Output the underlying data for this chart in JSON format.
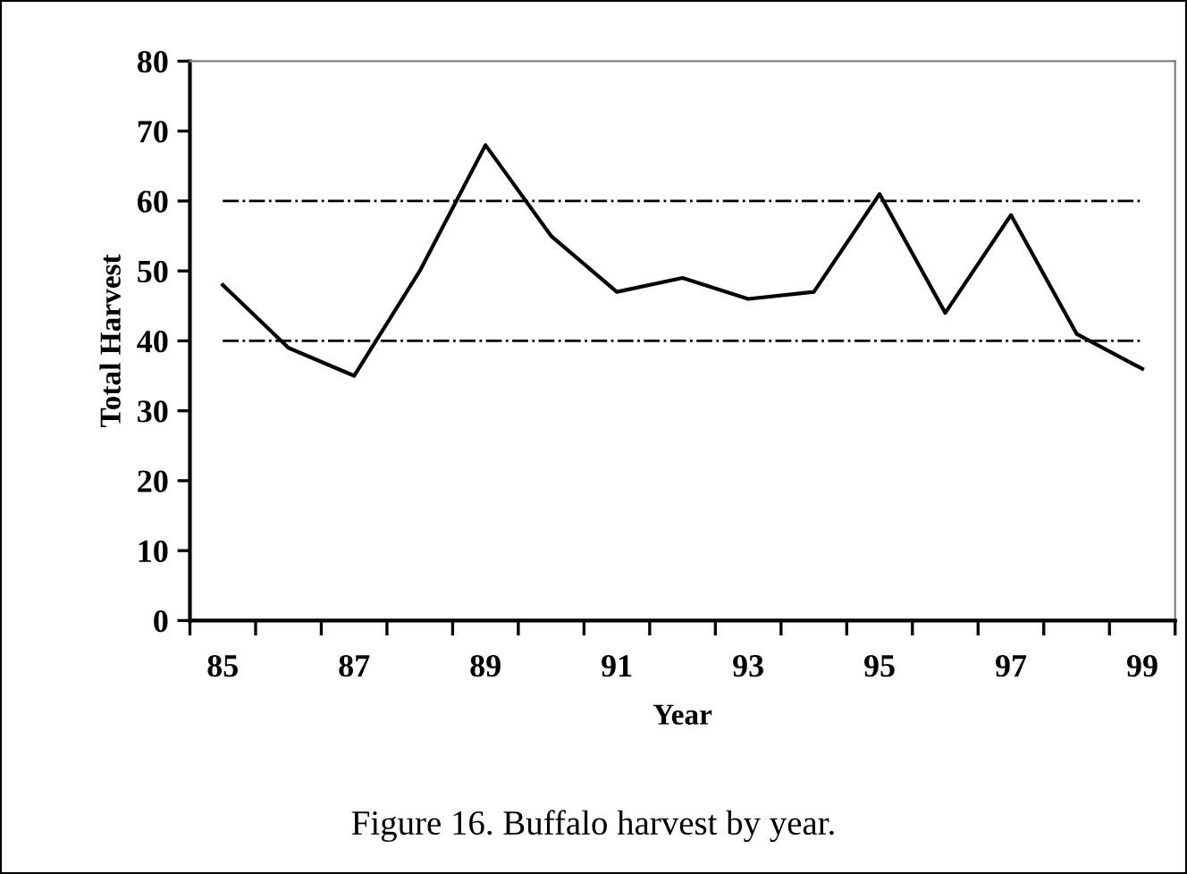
{
  "chart_data": {
    "type": "line",
    "xlabel": "Year",
    "ylabel": "Total Harvest",
    "categories": [
      "85",
      null,
      "87",
      null,
      "89",
      null,
      "91",
      null,
      "93",
      null,
      "95",
      null,
      "97",
      null,
      "99"
    ],
    "series": [
      {
        "color": "#000000",
        "values": [
          48,
          39,
          35,
          50,
          68,
          55,
          47,
          49,
          46,
          47,
          61,
          44,
          58,
          41,
          36
        ]
      }
    ],
    "ylim": [
      0,
      80
    ],
    "yticks": [
      0,
      10,
      20,
      30,
      40,
      50,
      60,
      70,
      80
    ],
    "ref_lines": [
      {
        "axis": "y",
        "value": 60,
        "color": "#000000",
        "line_style": "dashdot"
      },
      {
        "axis": "y",
        "value": 40,
        "color": "#000000",
        "line_style": "dashdot"
      }
    ],
    "grid": false,
    "legend": false,
    "marker": "none",
    "line_style": "solid",
    "annotations": [
      "Figure 16. Buffalo harvest by year."
    ]
  }
}
